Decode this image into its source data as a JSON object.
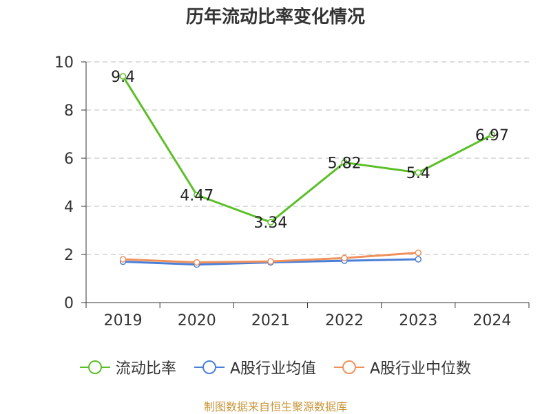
{
  "title": "历年流动比率变化情况",
  "source_text": "制图数据来自恒生聚源数据库",
  "colors": {
    "current_ratio": "#5bbf27",
    "industry_avg": "#4a7fd8",
    "industry_median": "#f0915c",
    "source": "#c8963c",
    "grid": "#bbbbbb",
    "axis": "#333333"
  },
  "chart_data": {
    "type": "line",
    "categories": [
      "2019",
      "2020",
      "2021",
      "2022",
      "2023",
      "2024"
    ],
    "ylim": [
      0,
      10
    ],
    "yticks": [
      "0",
      "2",
      "4",
      "6",
      "8",
      "10"
    ],
    "grid": "horizontal dashed",
    "legend_position": "bottom",
    "series": [
      {
        "name": "流动比率",
        "color_key": "current_ratio",
        "values": [
          9.4,
          4.47,
          3.34,
          5.82,
          5.4,
          6.97
        ],
        "labels": [
          "9.4",
          "4.47",
          "3.34",
          "5.82",
          "5.4",
          "6.97"
        ]
      },
      {
        "name": "A股行业均值",
        "color_key": "industry_avg",
        "values": [
          1.7,
          1.58,
          1.67,
          1.74,
          1.8,
          null
        ]
      },
      {
        "name": "A股行业中位数",
        "color_key": "industry_median",
        "values": [
          1.8,
          1.67,
          1.71,
          1.85,
          2.07,
          null
        ]
      }
    ]
  }
}
